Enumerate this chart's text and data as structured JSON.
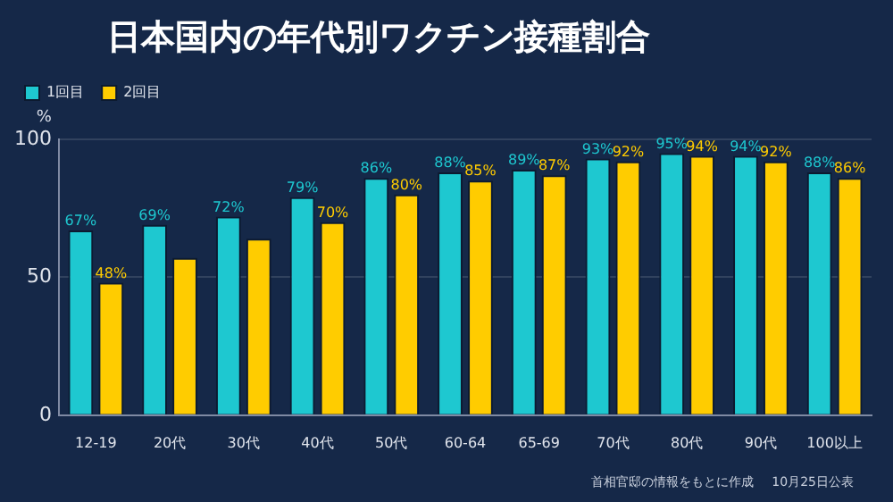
{
  "chart_data": {
    "type": "bar",
    "title": "日本国内の年代別ワクチン接種割合",
    "ylabel": "%",
    "categories": [
      "12-19",
      "20代",
      "30代",
      "40代",
      "50代",
      "60-64",
      "65-69",
      "70代",
      "80代",
      "90代",
      "100以上"
    ],
    "series": [
      {
        "name": "1回目",
        "color": "#1ec8d0",
        "values": [
          67,
          69,
          72,
          79,
          86,
          88,
          89,
          93,
          95,
          94,
          88
        ],
        "value_labels": [
          "67%",
          "69%",
          "72%",
          "79%",
          "86%",
          "88%",
          "89%",
          "93%",
          "95%",
          "94%",
          "88%"
        ]
      },
      {
        "name": "2回目",
        "color": "#ffcc00",
        "values": [
          48,
          57,
          64,
          70,
          80,
          85,
          87,
          92,
          94,
          92,
          86
        ],
        "value_labels": [
          "48%",
          null,
          null,
          "70%",
          "80%",
          "85%",
          "87%",
          "92%",
          "94%",
          "92%",
          "86%"
        ]
      }
    ],
    "ylim": [
      0,
      100
    ],
    "yticks": [
      0,
      50,
      100
    ],
    "grid": "y",
    "legend": "top left",
    "annotations": [
      "首相官邸の情報をもとに作成",
      "10月25日公表"
    ]
  }
}
